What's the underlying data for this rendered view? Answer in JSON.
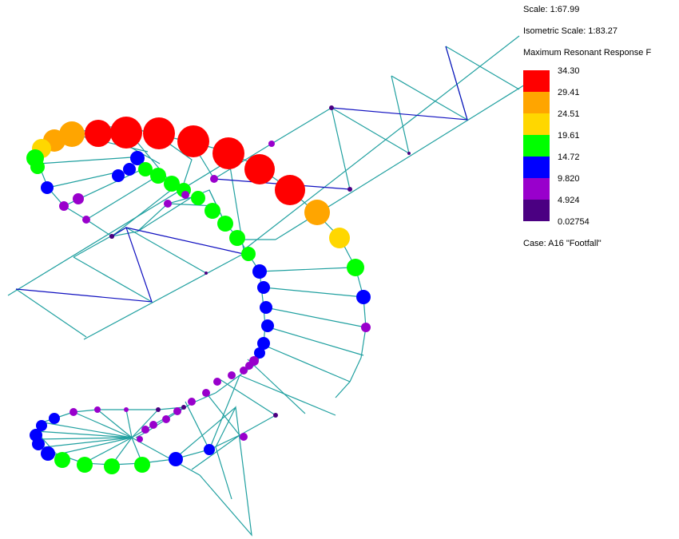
{
  "info": {
    "scale": "Scale: 1:67.99",
    "isometric_scale": "Isometric Scale: 1:83.27",
    "legend_title": "Maximum Resonant Response F",
    "case": "Case: A16 \"Footfall\""
  },
  "legend": {
    "bins": [
      {
        "value": "34.30",
        "color": "#ff0000"
      },
      {
        "value": "29.41",
        "color": "#ffa500"
      },
      {
        "value": "24.51",
        "color": "#ffd700"
      },
      {
        "value": "19.61",
        "color": "#00ff00"
      },
      {
        "value": "14.72",
        "color": "#0000ff"
      },
      {
        "value": "9.820",
        "color": "#9900cc"
      },
      {
        "value": "4.924",
        "color": "#4b0082"
      }
    ],
    "last_value": "0.02754"
  },
  "colors": {
    "frame": "#20a0a0",
    "bracing": "#1010c0"
  }
}
